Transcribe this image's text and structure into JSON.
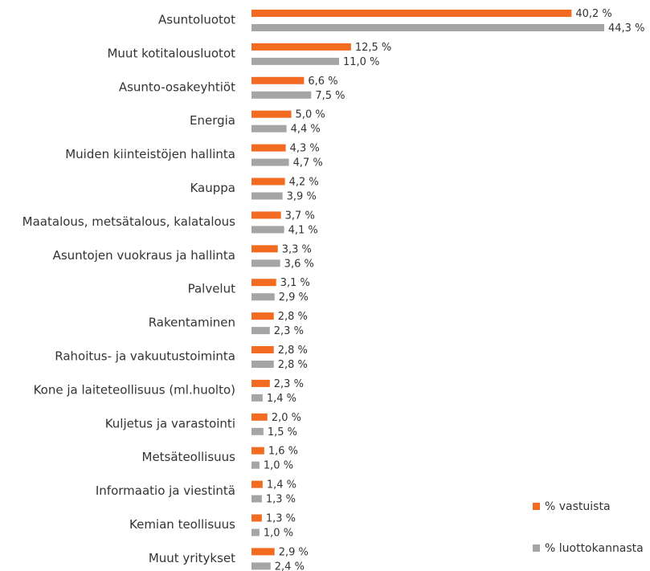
{
  "chart_data": {
    "type": "hbar",
    "categories": [
      "Asuntoluotot",
      "Muut kotitalousluotot",
      "Asunto-osakeyhtiöt",
      "Energia",
      "Muiden kiinteistöjen hallinta",
      "Kauppa",
      "Maatalous, metsätalous, kalatalous",
      "Asuntojen vuokraus ja hallinta",
      "Palvelut",
      "Rakentaminen",
      "Rahoitus- ja vakuutustoiminta",
      "Kone ja laiteteollisuus (ml.huolto)",
      "Kuljetus ja varastointi",
      "Metsäteollisuus",
      "Informaatio ja viestintä",
      "Kemian teollisuus",
      "Muut yritykset"
    ],
    "series": [
      {
        "name": "% vastuista",
        "color": "#f26b21",
        "values": [
          40.2,
          12.5,
          6.6,
          5.0,
          4.3,
          4.2,
          3.7,
          3.3,
          3.1,
          2.8,
          2.8,
          2.3,
          2.0,
          1.6,
          1.4,
          1.3,
          2.9
        ],
        "value_labels": [
          "40,2 %",
          "12,5 %",
          "6,6 %",
          "5,0 %",
          "4,3 %",
          "4,2 %",
          "3,7 %",
          "3,3 %",
          "3,1 %",
          "2,8 %",
          "2,8 %",
          "2,3 %",
          "2,0 %",
          "1,6 %",
          "1,4 %",
          "1,3 %",
          "2,9 %"
        ]
      },
      {
        "name": "% luottokannasta",
        "color": "#a5a5a5",
        "values": [
          44.3,
          11.0,
          7.5,
          4.4,
          4.7,
          3.9,
          4.1,
          3.6,
          2.9,
          2.3,
          2.8,
          1.4,
          1.5,
          1.0,
          1.3,
          1.0,
          2.4
        ],
        "value_labels": [
          "44,3 %",
          "11,0 %",
          "7,5 %",
          "4,4 %",
          "4,7 %",
          "3,9 %",
          "4,1 %",
          "3,6 %",
          "2,9 %",
          "2,3 %",
          "2,8 %",
          "1,4 %",
          "1,5 %",
          "1,0 %",
          "1,3 %",
          "1,0 %",
          "2,4 %"
        ]
      }
    ],
    "legend": "bottom-right"
  }
}
